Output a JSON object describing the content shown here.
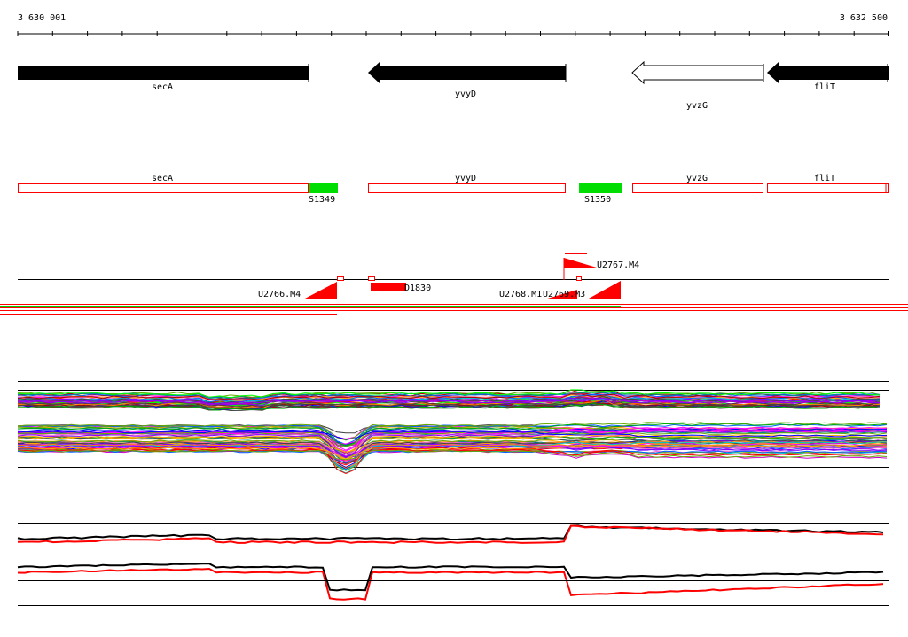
{
  "ruler": {
    "start_label": "3 630 001",
    "end_label": "3 632 500"
  },
  "genes": [
    {
      "name": "secA",
      "strand": "-",
      "fill": "black"
    },
    {
      "name": "yvyD",
      "strand": "-",
      "fill": "black"
    },
    {
      "name": "yvzG",
      "strand": "-",
      "fill": "white"
    },
    {
      "name": "fliT",
      "strand": "-",
      "fill": "black"
    }
  ],
  "transcripts": {
    "genes": [
      "secA",
      "yvyD",
      "yvzG",
      "fliT"
    ],
    "segments": [
      "S1349",
      "S1350"
    ]
  },
  "features": {
    "upshifts": [
      "U2766.M4",
      "U2767.M4",
      "U2768.M1",
      "U2769.M3"
    ],
    "downshift": "D1830"
  },
  "colors": {
    "gene_outline": "#ff0000",
    "segment": "#00dd00",
    "feature": "#ff0000",
    "axis": "#000000"
  }
}
